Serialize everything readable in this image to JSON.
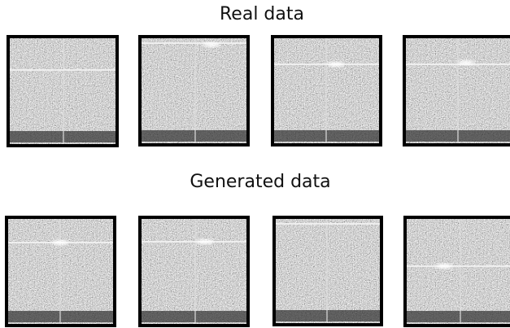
{
  "sections": [
    {
      "title": "Real data"
    },
    {
      "title": "Generated data"
    }
  ]
}
